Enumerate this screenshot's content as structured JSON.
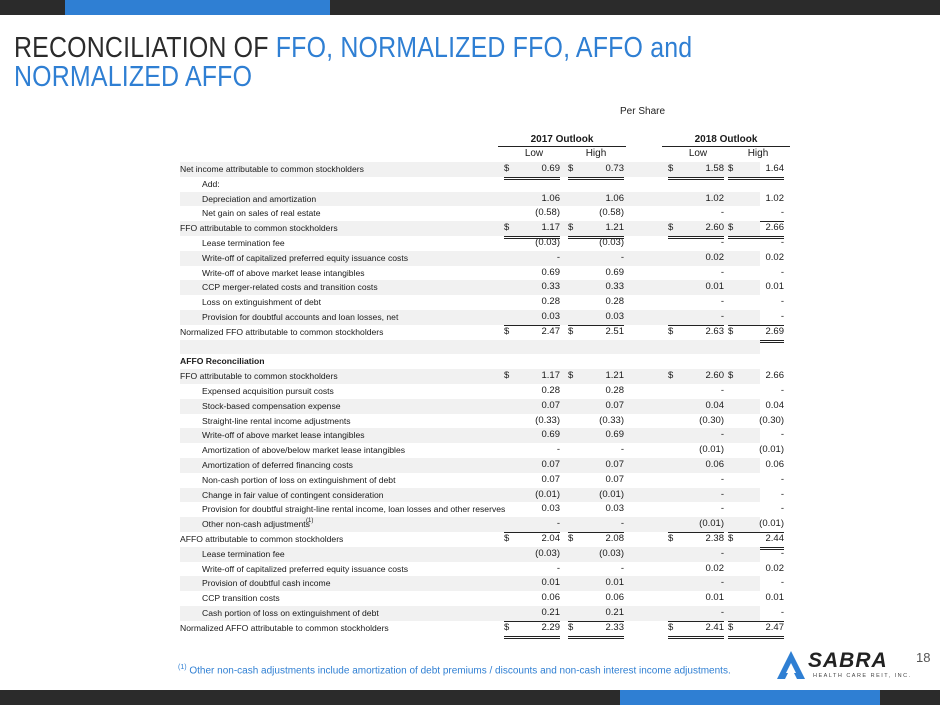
{
  "header": {
    "title_plain": "RECONCILIATION OF ",
    "title_blue_1": "FFO, NORMALIZED FFO, AFFO",
    "title_and": " and ",
    "title_blue_2": "NORMALIZED AFFO"
  },
  "per_share": "Per Share",
  "columns": {
    "year1": "2017 Outlook",
    "year2": "2018 Outlook",
    "low": "Low",
    "high": "High"
  },
  "rows": [
    {
      "label": "Net income attributable to common stockholders",
      "indent": false,
      "bold": false,
      "dollar": true,
      "vals": [
        "0.69",
        "0.73",
        "1.58",
        "1.64"
      ],
      "under": "dul"
    },
    {
      "label": "Add:",
      "indent": true,
      "bold": false,
      "dollar": false,
      "vals": [
        "",
        "",
        "",
        ""
      ],
      "under": ""
    },
    {
      "label": "Depreciation and amortization",
      "indent": true,
      "bold": false,
      "dollar": false,
      "vals": [
        "1.06",
        "1.06",
        "1.02",
        "1.02"
      ],
      "under": ""
    },
    {
      "label": "Net gain on sales of real estate",
      "indent": true,
      "bold": false,
      "dollar": false,
      "vals": [
        "(0.58)",
        "(0.58)",
        "-",
        "-"
      ],
      "under": "ul"
    },
    {
      "label": "FFO attributable to common stockholders",
      "indent": false,
      "bold": false,
      "dollar": true,
      "vals": [
        "1.17",
        "1.21",
        "2.60",
        "2.66"
      ],
      "under": "dul"
    },
    {
      "label": "Lease termination fee",
      "indent": true,
      "bold": false,
      "dollar": false,
      "vals": [
        "(0.03)",
        "(0.03)",
        "-",
        "-"
      ],
      "under": ""
    },
    {
      "label": "Write-off of capitalized preferred equity issuance costs",
      "indent": true,
      "bold": false,
      "dollar": false,
      "vals": [
        "-",
        "-",
        "0.02",
        "0.02"
      ],
      "under": ""
    },
    {
      "label": "Write-off of above market lease intangibles",
      "indent": true,
      "bold": false,
      "dollar": false,
      "vals": [
        "0.69",
        "0.69",
        "-",
        "-"
      ],
      "under": ""
    },
    {
      "label": "CCP merger-related costs and transition costs",
      "indent": true,
      "bold": false,
      "dollar": false,
      "vals": [
        "0.33",
        "0.33",
        "0.01",
        "0.01"
      ],
      "under": ""
    },
    {
      "label": "Loss on extinguishment of debt",
      "indent": true,
      "bold": false,
      "dollar": false,
      "vals": [
        "0.28",
        "0.28",
        "-",
        "-"
      ],
      "under": ""
    },
    {
      "label": "Provision for doubtful accounts and loan losses, net",
      "indent": true,
      "bold": false,
      "dollar": false,
      "vals": [
        "0.03",
        "0.03",
        "-",
        "-"
      ],
      "under": "ul"
    },
    {
      "label": "Normalized FFO attributable to common stockholders",
      "indent": false,
      "bold": false,
      "dollar": true,
      "vals": [
        "2.47",
        "2.51",
        "2.63",
        "2.69"
      ],
      "under": "dul"
    },
    {
      "label": "",
      "indent": false,
      "bold": false,
      "dollar": false,
      "vals": [
        "",
        "",
        "",
        ""
      ],
      "under": ""
    },
    {
      "label": "AFFO Reconciliation",
      "indent": false,
      "bold": true,
      "dollar": false,
      "vals": [
        "",
        "",
        "",
        ""
      ],
      "under": ""
    },
    {
      "label": "FFO attributable to common stockholders",
      "indent": false,
      "bold": false,
      "dollar": true,
      "vals": [
        "1.17",
        "1.21",
        "2.60",
        "2.66"
      ],
      "under": ""
    },
    {
      "label": "Expensed acquisition pursuit costs",
      "indent": true,
      "bold": false,
      "dollar": false,
      "vals": [
        "0.28",
        "0.28",
        "-",
        "-"
      ],
      "under": ""
    },
    {
      "label": "Stock-based compensation expense",
      "indent": true,
      "bold": false,
      "dollar": false,
      "vals": [
        "0.07",
        "0.07",
        "0.04",
        "0.04"
      ],
      "under": ""
    },
    {
      "label": "Straight-line rental income adjustments",
      "indent": true,
      "bold": false,
      "dollar": false,
      "vals": [
        "(0.33)",
        "(0.33)",
        "(0.30)",
        "(0.30)"
      ],
      "under": ""
    },
    {
      "label": "Write-off of above market lease intangibles",
      "indent": true,
      "bold": false,
      "dollar": false,
      "vals": [
        "0.69",
        "0.69",
        "-",
        "-"
      ],
      "under": ""
    },
    {
      "label": "Amortization of above/below market lease intangibles",
      "indent": true,
      "bold": false,
      "dollar": false,
      "vals": [
        "-",
        "-",
        "(0.01)",
        "(0.01)"
      ],
      "under": ""
    },
    {
      "label": "Amortization of deferred financing costs",
      "indent": true,
      "bold": false,
      "dollar": false,
      "vals": [
        "0.07",
        "0.07",
        "0.06",
        "0.06"
      ],
      "under": ""
    },
    {
      "label": "Non-cash portion of loss on extinguishment of debt",
      "indent": true,
      "bold": false,
      "dollar": false,
      "vals": [
        "0.07",
        "0.07",
        "-",
        "-"
      ],
      "under": ""
    },
    {
      "label": "Change in fair value of contingent consideration",
      "indent": true,
      "bold": false,
      "dollar": false,
      "vals": [
        "(0.01)",
        "(0.01)",
        "-",
        "-"
      ],
      "under": ""
    },
    {
      "label": "Provision for doubtful straight-line rental income, loan losses and other reserves",
      "indent": true,
      "bold": false,
      "dollar": false,
      "vals": [
        "0.03",
        "0.03",
        "-",
        "-"
      ],
      "under": ""
    },
    {
      "label": "Other non-cash adjustments",
      "sup": "(1)",
      "indent": true,
      "bold": false,
      "dollar": false,
      "vals": [
        "-",
        "-",
        "(0.01)",
        "(0.01)"
      ],
      "under": "ul"
    },
    {
      "label": "AFFO attributable to common stockholders",
      "indent": false,
      "bold": false,
      "dollar": true,
      "vals": [
        "2.04",
        "2.08",
        "2.38",
        "2.44"
      ],
      "under": "dul"
    },
    {
      "label": "Lease termination fee",
      "indent": true,
      "bold": false,
      "dollar": false,
      "vals": [
        "(0.03)",
        "(0.03)",
        "-",
        "-"
      ],
      "under": ""
    },
    {
      "label": "Write-off of capitalized preferred equity issuance costs",
      "indent": true,
      "bold": false,
      "dollar": false,
      "vals": [
        "-",
        "-",
        "0.02",
        "0.02"
      ],
      "under": ""
    },
    {
      "label": "Provision of doubtful cash income",
      "indent": true,
      "bold": false,
      "dollar": false,
      "vals": [
        "0.01",
        "0.01",
        "-",
        "-"
      ],
      "under": ""
    },
    {
      "label": "CCP transition costs",
      "indent": true,
      "bold": false,
      "dollar": false,
      "vals": [
        "0.06",
        "0.06",
        "0.01",
        "0.01"
      ],
      "under": ""
    },
    {
      "label": "Cash portion of loss on extinguishment of debt",
      "indent": true,
      "bold": false,
      "dollar": false,
      "vals": [
        "0.21",
        "0.21",
        "-",
        "-"
      ],
      "under": "ul"
    },
    {
      "label": "Normalized AFFO attributable to common stockholders",
      "indent": false,
      "bold": false,
      "dollar": true,
      "vals": [
        "2.29",
        "2.33",
        "2.41",
        "2.47"
      ],
      "under": "dul"
    }
  ],
  "currency_symbol": "$",
  "footnote": {
    "marker": "(1)",
    "text": " Other non-cash adjustments include amortization of debt premiums / discounts and non-cash interest income adjustments."
  },
  "page_number": "18",
  "logo": {
    "name": "SABRA",
    "tagline": "HEALTH CARE REIT, INC."
  },
  "colors": {
    "accent": "#2f7fd3",
    "bar": "#2b2b2b"
  }
}
